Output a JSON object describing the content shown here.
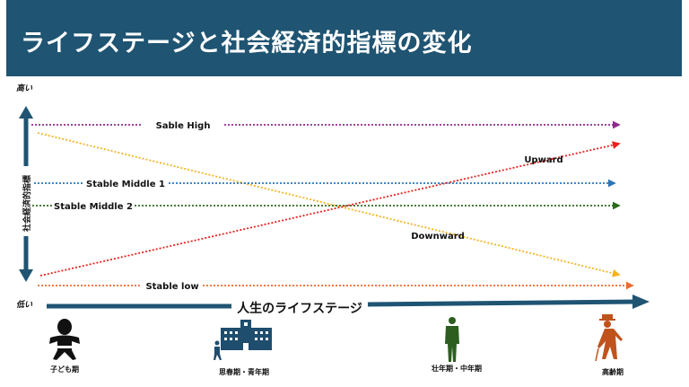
{
  "title": "ライフステージと社会経済的指標の変化",
  "y_axis": {
    "label": "社会経済的指標",
    "high": "高い",
    "low": "低い"
  },
  "x_axis": {
    "label": "人生のライフステージ"
  },
  "lines": [
    {
      "name": "Sable High",
      "color": "#8e2d8e"
    },
    {
      "name": "Downward",
      "color": "#f5b323"
    },
    {
      "name": "Stable Middle 1",
      "color": "#2e74b5"
    },
    {
      "name": "Stable Middle 2",
      "color": "#2e6b1f"
    },
    {
      "name": "Upward",
      "color": "#e8231d"
    },
    {
      "name": "Stable low",
      "color": "#ef6a2e"
    }
  ],
  "stages": [
    {
      "label": "子ども期",
      "icon": "baby-icon"
    },
    {
      "label": "思春期・青年期",
      "icon": "school-icon"
    },
    {
      "label": "壮年期・中年期",
      "icon": "adult-man-icon"
    },
    {
      "label": "高齢期",
      "icon": "elderly-person-icon"
    }
  ],
  "colors": {
    "accent": "#1f5472"
  }
}
